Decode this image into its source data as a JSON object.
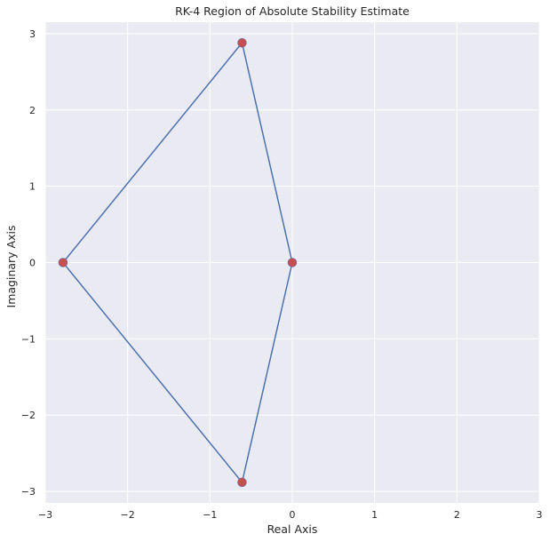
{
  "chart_data": {
    "type": "scatter",
    "title": "RK-4 Region of Absolute Stability Estimate",
    "xlabel": "Real Axis",
    "ylabel": "Imaginary Axis",
    "xlim": [
      -3,
      3
    ],
    "ylim": [
      -3.15,
      3.15
    ],
    "xticks": [
      -3,
      -2,
      -1,
      0,
      1,
      2,
      3
    ],
    "yticks": [
      -3,
      -2,
      -1,
      0,
      1,
      2,
      3
    ],
    "xtick_labels": [
      "−3",
      "−2",
      "−1",
      "0",
      "1",
      "2",
      "3"
    ],
    "ytick_labels": [
      "−3",
      "−2",
      "−1",
      "0",
      "1",
      "2",
      "3"
    ],
    "grid": true,
    "legend": "none",
    "background_color": "#eaeaf2",
    "grid_color": "#ffffff",
    "line_color": "#4c72b0",
    "marker_color": "#c44e52",
    "series": [
      {
        "style": "line",
        "x": [
          0,
          -0.61,
          -2.785,
          -0.61,
          0
        ],
        "y": [
          0,
          2.88,
          0,
          -2.88,
          0
        ]
      },
      {
        "style": "markers",
        "x": [
          0,
          -0.61,
          -2.785,
          -0.61
        ],
        "y": [
          0,
          2.88,
          0,
          -2.88
        ]
      }
    ]
  }
}
